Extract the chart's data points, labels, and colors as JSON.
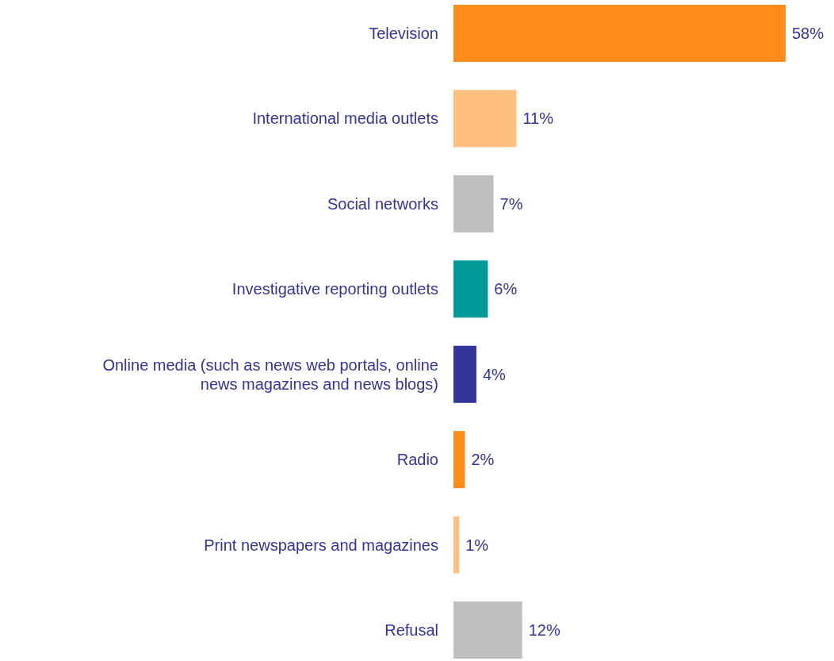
{
  "chart_data": {
    "type": "bar",
    "orientation": "horizontal",
    "categories": [
      "Television",
      "International media outlets",
      "Social networks",
      "Investigative reporting outlets",
      "Online media (such as news web portals, online news magazines and news blogs)",
      "Radio",
      "Print newspapers and magazines",
      "Refusal"
    ],
    "values": [
      58,
      11,
      7,
      6,
      4,
      2,
      1,
      12
    ],
    "value_labels": [
      "58%",
      "11%",
      "7%",
      "6%",
      "4%",
      "2%",
      "1%",
      "12%"
    ],
    "colors": [
      "#ff8c1a",
      "#ffbf7f",
      "#bfbfbf",
      "#009999",
      "#333399",
      "#ff8c1a",
      "#ffbf7f",
      "#bfbfbf"
    ]
  }
}
